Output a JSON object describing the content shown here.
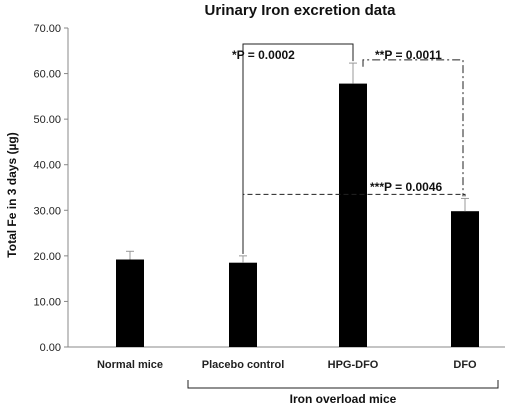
{
  "chart_data": {
    "type": "bar",
    "title": "Urinary Iron excretion data",
    "ylabel": "Total Fe in 3 days (µg)",
    "xlabel": "",
    "ylim": [
      0,
      70
    ],
    "yticks": [
      "0.00",
      "10.00",
      "20.00",
      "30.00",
      "40.00",
      "50.00",
      "60.00",
      "70.00"
    ],
    "categories": [
      "Normal mice",
      "Placebo control",
      "HPG-DFO",
      "DFO"
    ],
    "values": [
      19.2,
      18.5,
      57.8,
      29.8
    ],
    "errors": [
      1.8,
      1.5,
      4.5,
      2.8
    ],
    "bar_color": "#000000",
    "group_label": "Iron overload mice",
    "annotations": [
      {
        "label": "*P = 0.0002",
        "from": "Placebo control",
        "to": "HPG-DFO",
        "style": "solid"
      },
      {
        "label": "**P = 0.0011",
        "from": "HPG-DFO",
        "to": "DFO",
        "style": "dashdot"
      },
      {
        "label": "***P = 0.0046",
        "from": "Placebo control",
        "to": "DFO",
        "style": "dashed"
      }
    ]
  }
}
